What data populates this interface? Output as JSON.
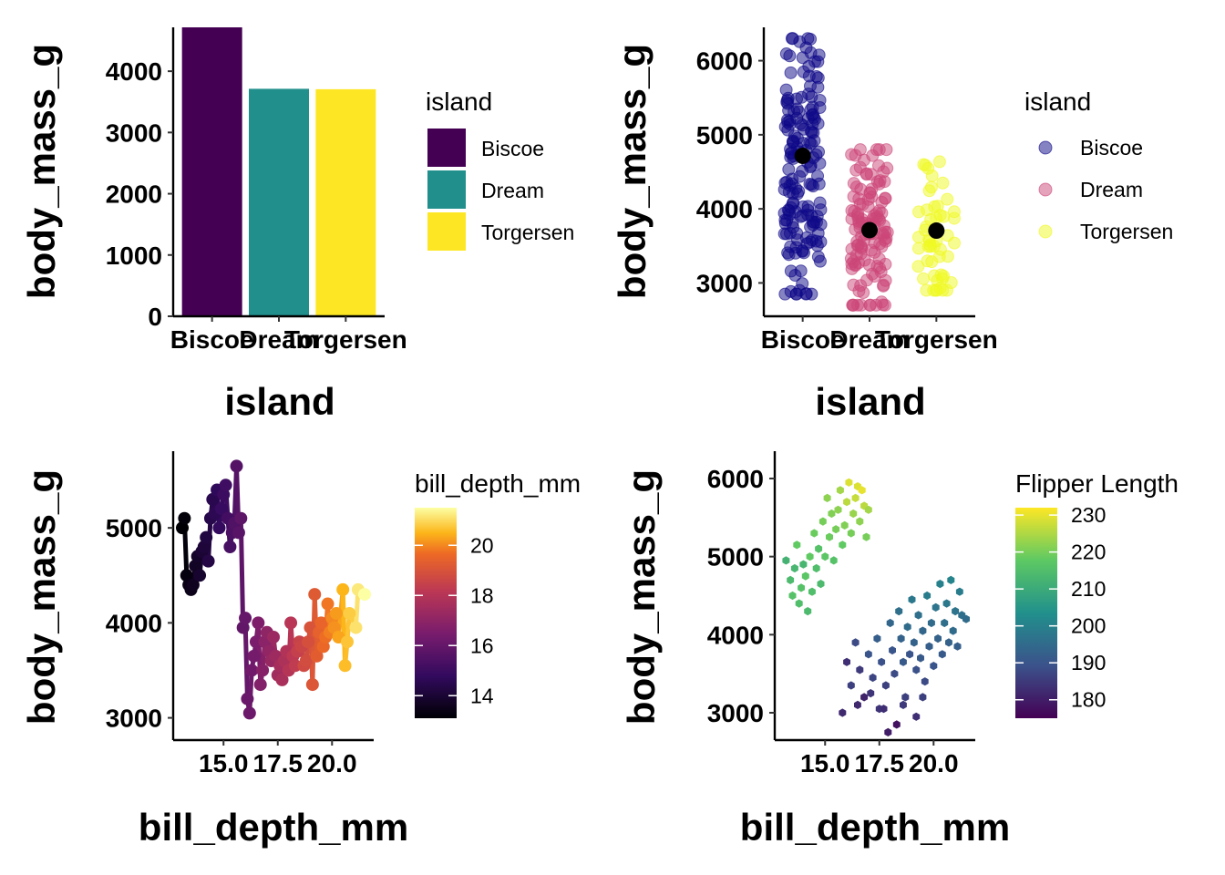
{
  "chart_data": [
    {
      "type": "bar",
      "xlabel": "island",
      "ylabel": "body_mass_g",
      "categories": [
        "Biscoe",
        "Dream",
        "Torgersen"
      ],
      "values": [
        4716,
        3713,
        3706
      ],
      "colors": [
        "#440154",
        "#21908C",
        "#FDE725"
      ],
      "yticks": [
        0,
        1000,
        2000,
        3000,
        4000
      ],
      "ylim": [
        0,
        4716
      ],
      "legend": {
        "title": "island",
        "position": "right",
        "items": [
          "Biscoe",
          "Dream",
          "Torgersen"
        ]
      },
      "grid": false
    },
    {
      "type": "scatter",
      "xlabel": "island",
      "ylabel": "body_mass_g",
      "categories": [
        "Biscoe",
        "Dream",
        "Torgersen"
      ],
      "colors": [
        "#0D0887",
        "#CC4678",
        "#F0F921"
      ],
      "means": [
        4716,
        3713,
        3706
      ],
      "point_ranges": [
        [
          2850,
          6300
        ],
        [
          2700,
          4800
        ],
        [
          2900,
          4700
        ]
      ],
      "point_counts": [
        168,
        124,
        52
      ],
      "yticks": [
        3000,
        4000,
        5000,
        6000
      ],
      "ylim": [
        2550,
        6450
      ],
      "legend": {
        "title": "island",
        "position": "right",
        "items": [
          "Biscoe",
          "Dream",
          "Torgersen"
        ]
      },
      "grid": false
    },
    {
      "type": "line",
      "xlabel": "bill_depth_mm",
      "ylabel": "body_mass_g",
      "x": [
        13.1,
        13.2,
        13.3,
        13.4,
        13.5,
        13.6,
        13.7,
        13.8,
        13.9,
        14.0,
        14.1,
        14.2,
        14.3,
        14.4,
        14.5,
        14.6,
        14.7,
        14.8,
        14.9,
        15.0,
        15.1,
        15.2,
        15.3,
        15.4,
        15.5,
        15.6,
        15.7,
        15.8,
        15.9,
        16.0,
        16.1,
        16.2,
        16.3,
        16.4,
        16.5,
        16.6,
        16.7,
        16.8,
        16.9,
        17.0,
        17.1,
        17.2,
        17.3,
        17.4,
        17.5,
        17.6,
        17.7,
        17.8,
        17.9,
        18.0,
        18.1,
        18.2,
        18.3,
        18.4,
        18.5,
        18.6,
        18.7,
        18.8,
        18.9,
        19.0,
        19.1,
        19.2,
        19.3,
        19.4,
        19.5,
        19.6,
        19.7,
        19.8,
        19.9,
        20.0,
        20.1,
        20.2,
        20.3,
        20.5,
        20.6,
        20.7,
        20.8,
        21.1,
        21.2,
        21.5
      ],
      "y": [
        5000,
        5100,
        4500,
        4400,
        4350,
        4400,
        4600,
        4700,
        4500,
        4750,
        4800,
        4900,
        4650,
        5100,
        5300,
        5150,
        5400,
        5000,
        5200,
        5350,
        5450,
        5100,
        4800,
        4950,
        5050,
        5650,
        4950,
        5100,
        3950,
        4050,
        3200,
        3050,
        3500,
        3650,
        3800,
        4000,
        3350,
        3500,
        3800,
        3900,
        3700,
        3600,
        3850,
        3650,
        3450,
        3550,
        3400,
        3600,
        3700,
        3500,
        4000,
        3650,
        3550,
        3700,
        3800,
        3750,
        3550,
        3600,
        3800,
        3950,
        3350,
        4300,
        3650,
        3900,
        4000,
        3750,
        3850,
        4200,
        3900,
        4050,
        3950,
        4100,
        3850,
        4350,
        3550,
        3800,
        4100,
        3950,
        4350,
        4300
      ],
      "color_scale": {
        "title": "bill_depth_mm",
        "ticks": [
          14,
          16,
          18,
          20
        ],
        "range": [
          13.1,
          21.5
        ],
        "palette": "inferno"
      },
      "xticks": [
        "15.0",
        "17.5",
        "20.0"
      ],
      "yticks": [
        3000,
        4000,
        5000
      ],
      "xlim": [
        13.1,
        21.5
      ],
      "ylim": [
        2900,
        5750
      ],
      "grid": false
    },
    {
      "type": "heatmap",
      "xlabel": "bill_depth_mm",
      "ylabel": "body_mass_g",
      "description": "hexagonal bins",
      "fill_variable": "flipper_length_mm",
      "cells": [
        [
          13.2,
          4950,
          212
        ],
        [
          13.4,
          4700,
          214
        ],
        [
          13.5,
          4500,
          216
        ],
        [
          13.6,
          4850,
          213
        ],
        [
          13.7,
          5150,
          218
        ],
        [
          13.8,
          4400,
          215
        ],
        [
          13.9,
          4600,
          216
        ],
        [
          14.0,
          4900,
          213
        ],
        [
          14.1,
          4750,
          217
        ],
        [
          14.2,
          4300,
          214
        ],
        [
          14.3,
          5000,
          218
        ],
        [
          14.4,
          4550,
          215
        ],
        [
          14.5,
          5300,
          219
        ],
        [
          14.6,
          4850,
          215
        ],
        [
          14.7,
          5100,
          216
        ],
        [
          14.8,
          4650,
          214
        ],
        [
          14.9,
          5450,
          220
        ],
        [
          15.0,
          5000,
          217
        ],
        [
          15.1,
          5750,
          222
        ],
        [
          15.2,
          5250,
          219
        ],
        [
          15.3,
          5550,
          221
        ],
        [
          15.4,
          4950,
          216
        ],
        [
          15.5,
          5350,
          220
        ],
        [
          15.6,
          5600,
          222
        ],
        [
          15.7,
          5850,
          224
        ],
        [
          15.8,
          5150,
          218
        ],
        [
          15.9,
          5400,
          221
        ],
        [
          16.0,
          5700,
          226
        ],
        [
          16.1,
          5950,
          229
        ],
        [
          16.2,
          5300,
          220
        ],
        [
          16.3,
          5550,
          223
        ],
        [
          16.4,
          5750,
          227
        ],
        [
          16.5,
          5900,
          229
        ],
        [
          16.6,
          5450,
          222
        ],
        [
          16.7,
          5850,
          230
        ],
        [
          16.8,
          5650,
          226
        ],
        [
          16.9,
          5250,
          220
        ],
        [
          17.0,
          5600,
          224
        ],
        [
          16.0,
          3650,
          183
        ],
        [
          16.2,
          3350,
          186
        ],
        [
          16.4,
          3900,
          188
        ],
        [
          16.6,
          3550,
          185
        ],
        [
          16.8,
          3200,
          181
        ],
        [
          17.0,
          3750,
          190
        ],
        [
          17.2,
          3450,
          187
        ],
        [
          17.4,
          3950,
          192
        ],
        [
          17.5,
          3050,
          184
        ],
        [
          17.6,
          3650,
          189
        ],
        [
          17.8,
          3350,
          186
        ],
        [
          18.0,
          4150,
          194
        ],
        [
          18.1,
          3800,
          190
        ],
        [
          18.2,
          3500,
          188
        ],
        [
          18.3,
          2850,
          178
        ],
        [
          18.4,
          4300,
          196
        ],
        [
          18.5,
          3950,
          193
        ],
        [
          18.6,
          3650,
          191
        ],
        [
          18.7,
          3200,
          186
        ],
        [
          18.8,
          4100,
          195
        ],
        [
          18.9,
          3750,
          190
        ],
        [
          19.0,
          4450,
          198
        ],
        [
          19.1,
          3900,
          193
        ],
        [
          19.2,
          3550,
          189
        ],
        [
          19.3,
          4250,
          196
        ],
        [
          19.4,
          3700,
          191
        ],
        [
          19.5,
          4050,
          194
        ],
        [
          19.6,
          3400,
          188
        ],
        [
          19.7,
          4500,
          199
        ],
        [
          19.8,
          3850,
          192
        ],
        [
          19.9,
          4150,
          195
        ],
        [
          20.0,
          3600,
          190
        ],
        [
          20.1,
          4350,
          197
        ],
        [
          20.2,
          3950,
          193
        ],
        [
          20.3,
          4650,
          200
        ],
        [
          20.4,
          3750,
          191
        ],
        [
          20.5,
          4150,
          196
        ],
        [
          20.6,
          4400,
          198
        ],
        [
          20.7,
          3900,
          193
        ],
        [
          20.8,
          4700,
          201
        ],
        [
          20.9,
          4050,
          195
        ],
        [
          21.0,
          4300,
          197
        ],
        [
          21.1,
          3850,
          192
        ],
        [
          21.2,
          4550,
          199
        ],
        [
          21.3,
          4250,
          196
        ],
        [
          21.5,
          4200,
          195
        ],
        [
          16.5,
          3100,
          182
        ],
        [
          17.1,
          3250,
          184
        ],
        [
          17.7,
          3050,
          183
        ],
        [
          18.6,
          3100,
          185
        ],
        [
          19.2,
          2950,
          183
        ],
        [
          17.9,
          2750,
          180
        ],
        [
          15.8,
          3000,
          182
        ],
        [
          19.5,
          3200,
          186
        ]
      ],
      "color_scale": {
        "title": "Flipper Length",
        "ticks": [
          180,
          190,
          200,
          210,
          220,
          230
        ],
        "range": [
          175,
          232
        ],
        "palette": "viridis"
      },
      "xticks": [
        "15.0",
        "17.5",
        "20.0"
      ],
      "yticks": [
        3000,
        4000,
        5000,
        6000
      ],
      "xlim": [
        13.1,
        21.5
      ],
      "ylim": [
        2650,
        6350
      ],
      "grid": false
    }
  ]
}
